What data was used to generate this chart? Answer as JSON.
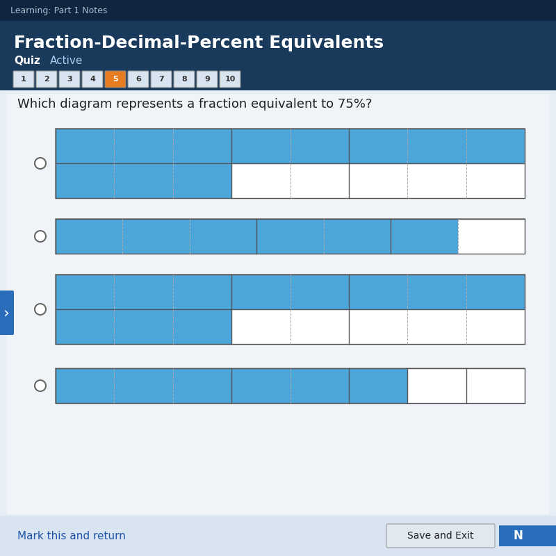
{
  "title": "Fraction-Decimal-Percent Equivalents",
  "question": "Which diagram represents a fraction equivalent to 75%?",
  "question_numbers": [
    1,
    2,
    3,
    4,
    5,
    6,
    7,
    8,
    9,
    10
  ],
  "active_question": 5,
  "blue_color": "#4da6d9",
  "white_color": "#ffffff",
  "grid_line_color": "#555555",
  "dashed_line_color": "#aaaaaa",
  "panel_bg": "#e8eef5",
  "header_bg": "#1a3a5c",
  "top_bar_bg": "#0f2540",
  "footer_bg": "#d8e4f0",
  "diagrams": [
    {
      "rows": 2,
      "cols": 8,
      "filled": [
        [
          1,
          1,
          1,
          1,
          1,
          1,
          1,
          1
        ],
        [
          1,
          1,
          1,
          0,
          0,
          0,
          0,
          0
        ]
      ],
      "dashed_cols": [
        1,
        2,
        4,
        6,
        7
      ]
    },
    {
      "rows": 1,
      "cols": 7,
      "filled": [
        [
          1,
          1,
          1,
          1,
          1,
          1,
          0
        ]
      ],
      "dashed_cols": [
        1,
        2,
        4,
        6
      ]
    },
    {
      "rows": 2,
      "cols": 8,
      "filled": [
        [
          1,
          1,
          1,
          1,
          1,
          1,
          1,
          1
        ],
        [
          1,
          1,
          1,
          0,
          0,
          0,
          0,
          0
        ]
      ],
      "dashed_cols": [
        1,
        2,
        4,
        6,
        7
      ]
    },
    {
      "rows": 1,
      "cols": 8,
      "filled": [
        [
          1,
          1,
          1,
          1,
          1,
          1,
          0,
          0
        ]
      ],
      "dashed_cols": [
        1,
        2,
        4
      ]
    }
  ],
  "footer_text": "Mark this and return",
  "button_text": "Save and Exit",
  "next_text": "N"
}
